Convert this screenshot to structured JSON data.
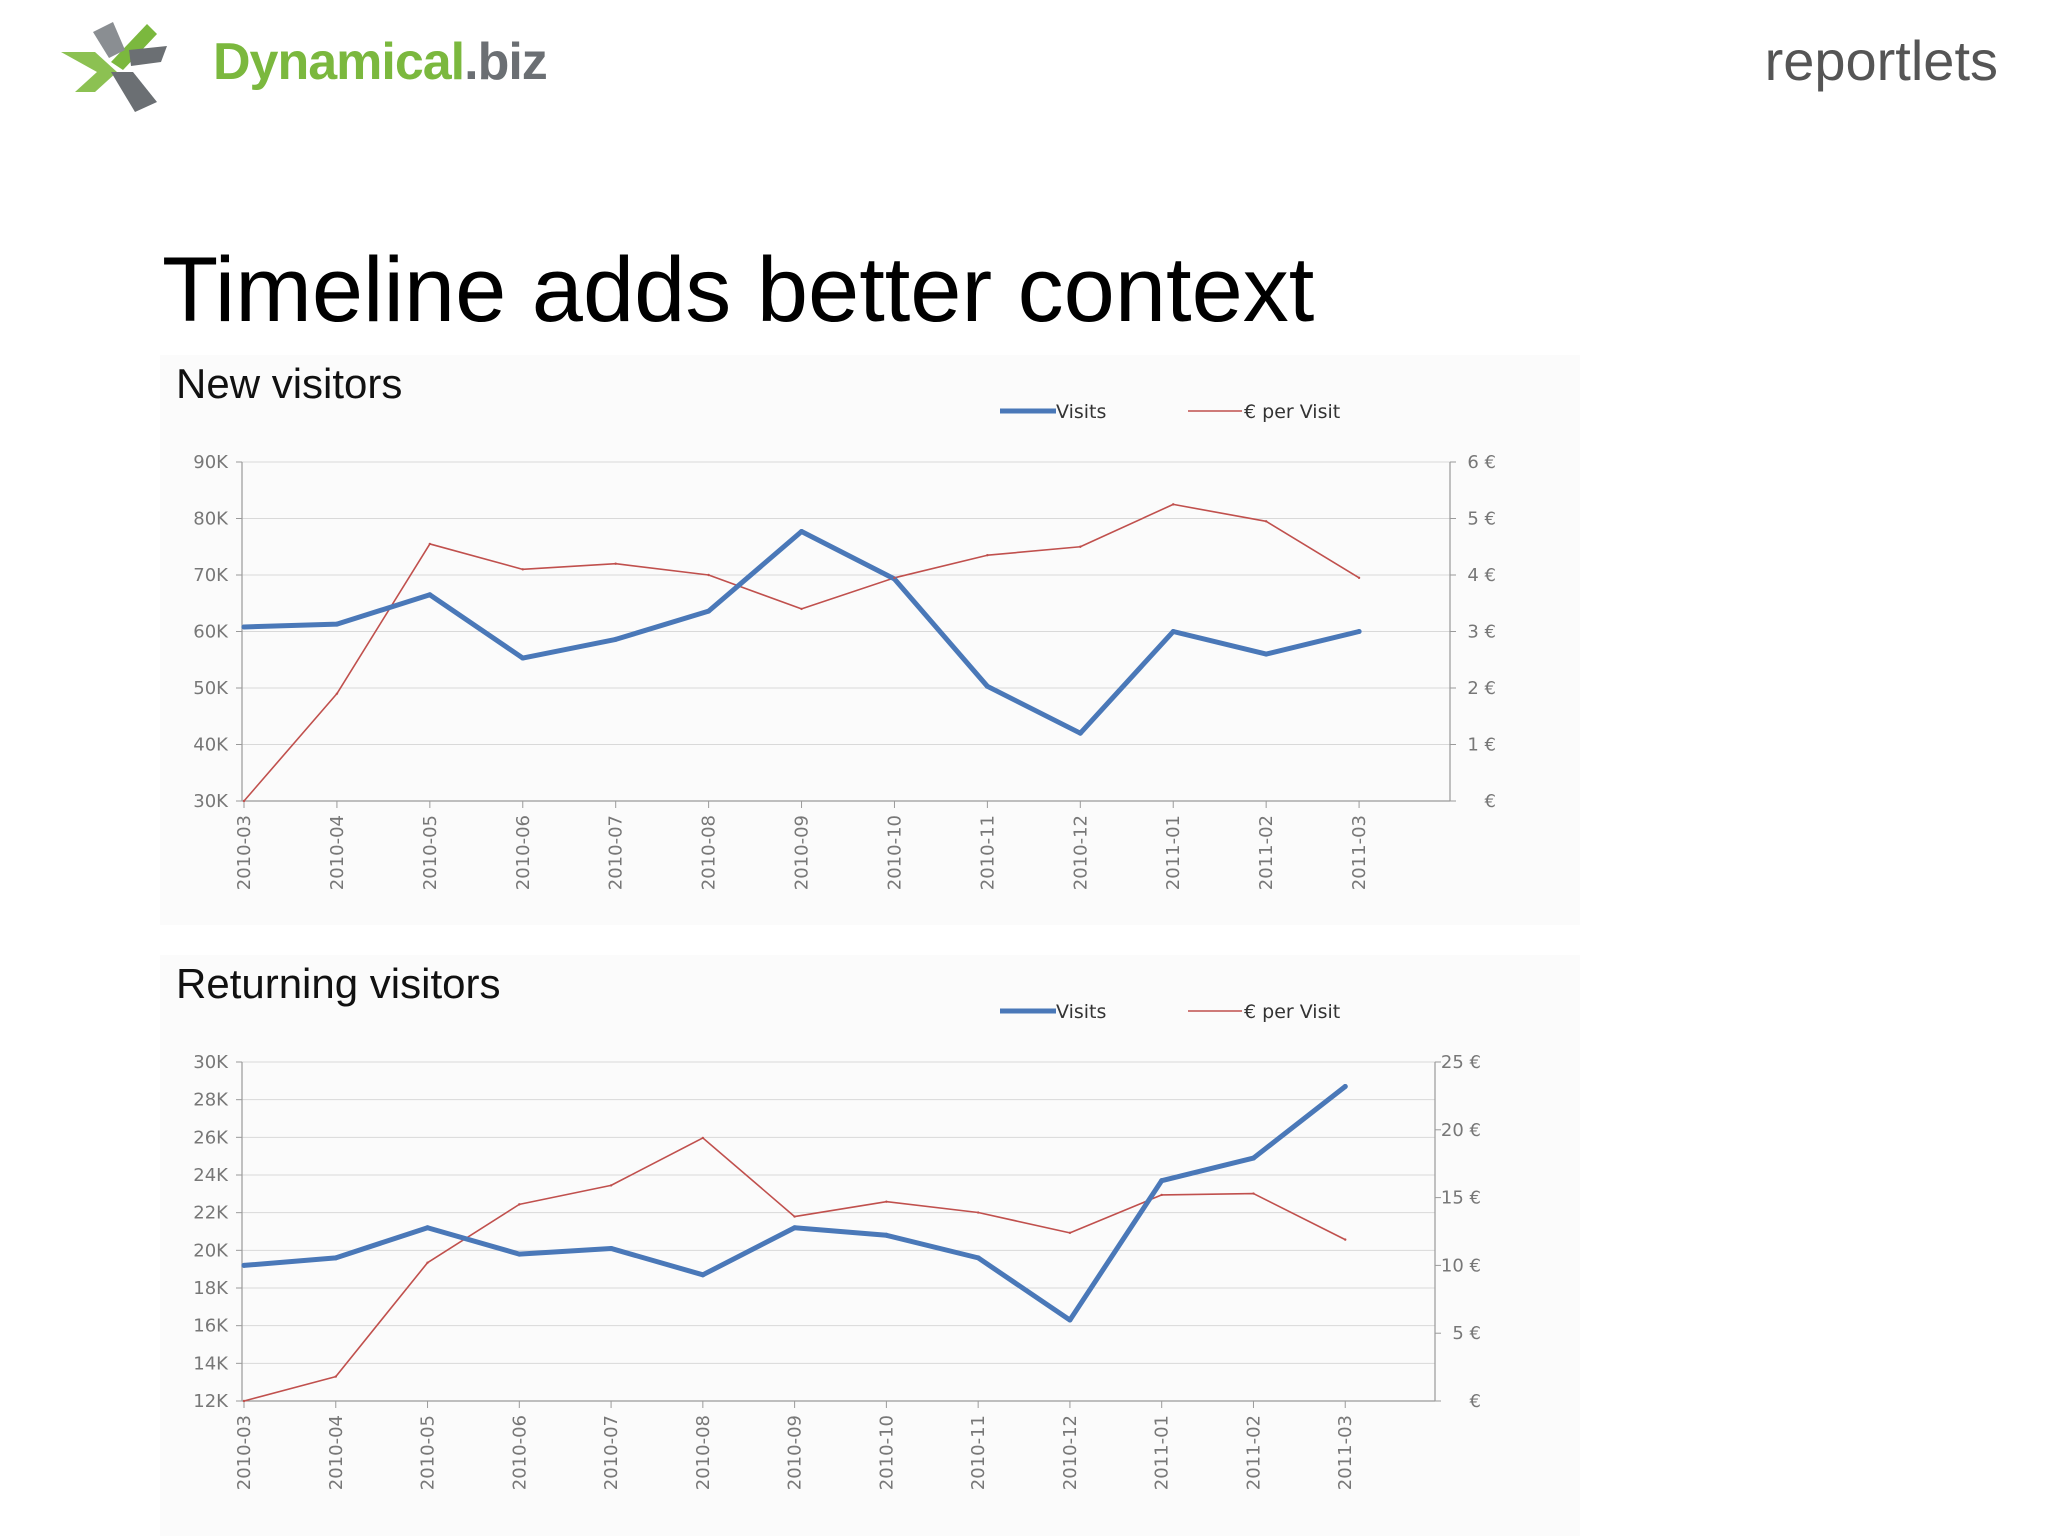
{
  "header": {
    "logo_text": "Dynamical",
    "logo_suffix": ".biz",
    "brand": "reportlets"
  },
  "slide": {
    "title": "Timeline adds better context"
  },
  "colors": {
    "visits": "#4a78b8",
    "per_visit": "#c0504d",
    "axis": "#9a9a9a",
    "grid": "#d9d9d9",
    "logo_green": "#7bb83e",
    "logo_gray": "#6b6f73"
  },
  "chart_data": [
    {
      "type": "line",
      "title": "New visitors",
      "categories": [
        "2010-03",
        "2010-04",
        "2010-05",
        "2010-06",
        "2010-07",
        "2010-08",
        "2010-09",
        "2010-10",
        "2010-11",
        "2010-12",
        "2011-01",
        "2011-02",
        "2011-03"
      ],
      "series": [
        {
          "name": "Visits",
          "axis": "left",
          "values": [
            60800,
            61300,
            66500,
            55300,
            58600,
            63600,
            77700,
            69300,
            50300,
            42000,
            60000,
            56000,
            60000
          ]
        },
        {
          "name": "€ per Visit",
          "axis": "right",
          "values": [
            0.0,
            1.9,
            4.55,
            4.1,
            4.2,
            4.0,
            3.4,
            3.95,
            4.35,
            4.5,
            5.25,
            4.95,
            3.95
          ]
        }
      ],
      "left_axis": {
        "ticks": [
          "90K",
          "80K",
          "70K",
          "60K",
          "50K",
          "40K",
          "30K"
        ],
        "min": 30000,
        "max": 90000
      },
      "right_axis": {
        "ticks": [
          "6 €",
          "5 €",
          "4 €",
          "3 €",
          "2 €",
          "1 €",
          "€"
        ],
        "min": 0,
        "max": 6
      },
      "legend": {
        "position": "top-right"
      },
      "grid": true
    },
    {
      "type": "line",
      "title": "Returning visitors",
      "categories": [
        "2010-03",
        "2010-04",
        "2010-05",
        "2010-06",
        "2010-07",
        "2010-08",
        "2010-09",
        "2010-10",
        "2010-11",
        "2010-12",
        "2011-01",
        "2011-02",
        "2011-03"
      ],
      "series": [
        {
          "name": "Visits",
          "axis": "left",
          "values": [
            19200,
            19600,
            21200,
            19800,
            20100,
            18700,
            21200,
            20800,
            19600,
            16300,
            23700,
            24900,
            28700
          ]
        },
        {
          "name": "€ per Visit",
          "axis": "right",
          "values": [
            0.0,
            1.8,
            10.2,
            14.5,
            15.9,
            19.4,
            13.6,
            14.7,
            13.9,
            12.4,
            15.2,
            15.3,
            11.9
          ]
        }
      ],
      "left_axis": {
        "ticks": [
          "30K",
          "28K",
          "26K",
          "24K",
          "22K",
          "20K",
          "18K",
          "16K",
          "14K",
          "12K"
        ],
        "min": 12000,
        "max": 30000
      },
      "right_axis": {
        "ticks": [
          "25 €",
          "20 €",
          "15 €",
          "10 €",
          "5 €",
          "€"
        ],
        "min": 0,
        "max": 25
      },
      "legend": {
        "position": "top-right"
      },
      "grid": true
    }
  ]
}
